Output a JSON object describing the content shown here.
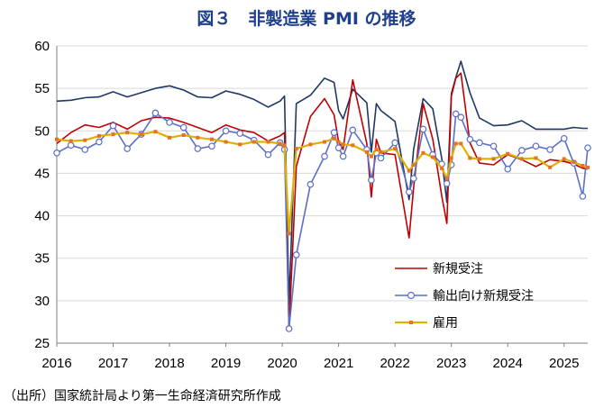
{
  "title": "図３　非製造業 PMI の推移",
  "source": "（出所）国家統計局より第一生命経済研究所作成",
  "chart_data": {
    "type": "line",
    "title": "図３　非製造業 PMI の推移",
    "ylim": [
      25,
      60
    ],
    "yticks": [
      25,
      30,
      35,
      40,
      45,
      50,
      55,
      60
    ],
    "xlim": [
      2016.0,
      2025.42
    ],
    "xticks": [
      "2016",
      "2017",
      "2018",
      "2019",
      "2020",
      "2021",
      "2022",
      "2023",
      "2024",
      "2025"
    ],
    "grid": "horizontal",
    "legend_position": "lower-right",
    "series": [
      {
        "name": "",
        "color": "#1f3864",
        "marker": "none",
        "x": [
          2016.0,
          2016.25,
          2016.5,
          2016.75,
          2017.0,
          2017.25,
          2017.5,
          2017.75,
          2018.0,
          2018.25,
          2018.5,
          2018.75,
          2019.0,
          2019.25,
          2019.5,
          2019.75,
          2019.96,
          2020.04,
          2020.12,
          2020.25,
          2020.5,
          2020.75,
          2020.92,
          2021.0,
          2021.08,
          2021.25,
          2021.5,
          2021.58,
          2021.67,
          2021.75,
          2022.0,
          2022.25,
          2022.33,
          2022.5,
          2022.67,
          2022.83,
          2022.92,
          2023.0,
          2023.08,
          2023.17,
          2023.33,
          2023.5,
          2023.75,
          2024.0,
          2024.25,
          2024.5,
          2024.75,
          2025.0,
          2025.17,
          2025.33,
          2025.42
        ],
        "values": [
          53.5,
          53.6,
          53.9,
          54.0,
          54.6,
          54.0,
          54.5,
          55.0,
          55.3,
          54.8,
          54.0,
          53.9,
          54.7,
          54.3,
          53.7,
          52.8,
          53.5,
          54.1,
          29.6,
          53.2,
          54.2,
          56.2,
          55.7,
          52.4,
          51.4,
          54.9,
          53.3,
          47.5,
          53.2,
          52.4,
          51.1,
          41.9,
          47.8,
          53.8,
          52.6,
          46.7,
          41.6,
          54.4,
          56.3,
          58.2,
          54.5,
          51.5,
          50.6,
          50.7,
          51.2,
          50.2,
          50.2,
          50.2,
          50.4,
          50.3,
          50.3
        ]
      },
      {
        "name": "新規受注",
        "color": "#c00000",
        "marker": "none",
        "x": [
          2016.0,
          2016.25,
          2016.5,
          2016.75,
          2017.0,
          2017.25,
          2017.5,
          2017.75,
          2018.0,
          2018.25,
          2018.5,
          2018.75,
          2019.0,
          2019.25,
          2019.5,
          2019.75,
          2019.96,
          2020.04,
          2020.12,
          2020.25,
          2020.5,
          2020.75,
          2020.92,
          2021.0,
          2021.08,
          2021.25,
          2021.5,
          2021.58,
          2021.67,
          2021.75,
          2022.0,
          2022.25,
          2022.33,
          2022.5,
          2022.67,
          2022.83,
          2022.92,
          2023.0,
          2023.08,
          2023.17,
          2023.33,
          2023.5,
          2023.75,
          2024.0,
          2024.25,
          2024.5,
          2024.75,
          2025.0,
          2025.17,
          2025.33,
          2025.42
        ],
        "values": [
          48.5,
          49.8,
          50.7,
          50.4,
          51.0,
          50.2,
          51.2,
          51.6,
          51.5,
          51.0,
          50.4,
          49.8,
          50.7,
          50.1,
          49.8,
          48.8,
          49.4,
          49.8,
          26.5,
          45.8,
          51.7,
          53.8,
          51.9,
          48.7,
          47.8,
          56.0,
          48.5,
          42.2,
          49.0,
          47.4,
          47.2,
          37.4,
          43.3,
          53.2,
          49.0,
          42.3,
          39.1,
          54.1,
          56.2,
          56.8,
          48.6,
          46.2,
          46.0,
          47.2,
          46.6,
          45.8,
          46.6,
          46.4,
          46.1,
          45.6,
          45.5
        ]
      },
      {
        "name": "輸出向け新規受注",
        "color": "#5b6fc7",
        "marker": "circle",
        "x": [
          2016.0,
          2016.25,
          2016.5,
          2016.75,
          2017.0,
          2017.25,
          2017.5,
          2017.75,
          2018.0,
          2018.25,
          2018.5,
          2018.75,
          2019.0,
          2019.25,
          2019.5,
          2019.75,
          2019.96,
          2020.04,
          2020.12,
          2020.25,
          2020.5,
          2020.75,
          2020.92,
          2021.0,
          2021.08,
          2021.25,
          2021.5,
          2021.58,
          2021.67,
          2021.75,
          2022.0,
          2022.25,
          2022.33,
          2022.5,
          2022.67,
          2022.83,
          2022.92,
          2023.0,
          2023.08,
          2023.17,
          2023.33,
          2023.5,
          2023.75,
          2024.0,
          2024.25,
          2024.5,
          2024.75,
          2025.0,
          2025.17,
          2025.33,
          2025.42
        ],
        "values": [
          47.4,
          48.3,
          47.8,
          48.7,
          50.6,
          47.9,
          49.6,
          52.1,
          51.0,
          50.4,
          47.9,
          48.2,
          50.0,
          49.7,
          48.9,
          47.2,
          48.6,
          47.8,
          26.7,
          35.4,
          43.7,
          47.0,
          49.8,
          48.0,
          47.0,
          50.1,
          47.8,
          44.2,
          47.4,
          46.8,
          48.6,
          42.8,
          44.4,
          50.2,
          47.2,
          46.1,
          43.8,
          46.0,
          52.0,
          51.6,
          49.0,
          48.6,
          48.2,
          45.5,
          47.7,
          48.2,
          47.8,
          49.1,
          46.2,
          42.3,
          48.0
        ]
      },
      {
        "name": "雇用",
        "color": "#e0b000",
        "marker": "square",
        "x": [
          2016.0,
          2016.25,
          2016.5,
          2016.75,
          2017.0,
          2017.25,
          2017.5,
          2017.75,
          2018.0,
          2018.25,
          2018.5,
          2018.75,
          2019.0,
          2019.25,
          2019.5,
          2019.75,
          2019.96,
          2020.04,
          2020.12,
          2020.25,
          2020.5,
          2020.75,
          2020.92,
          2021.0,
          2021.08,
          2021.25,
          2021.5,
          2021.58,
          2021.67,
          2021.75,
          2022.0,
          2022.25,
          2022.33,
          2022.5,
          2022.67,
          2022.83,
          2022.92,
          2023.0,
          2023.08,
          2023.17,
          2023.33,
          2023.5,
          2023.75,
          2024.0,
          2024.25,
          2024.5,
          2024.75,
          2025.0,
          2025.17,
          2025.33,
          2025.42
        ],
        "values": [
          49.0,
          48.8,
          48.9,
          49.4,
          49.6,
          49.8,
          49.6,
          49.9,
          49.2,
          49.5,
          49.2,
          49.0,
          48.7,
          48.4,
          48.7,
          48.7,
          48.5,
          48.3,
          37.9,
          47.9,
          48.4,
          48.7,
          49.1,
          48.7,
          48.4,
          48.3,
          47.5,
          47.0,
          47.8,
          47.5,
          47.9,
          45.3,
          46.0,
          47.4,
          46.9,
          45.6,
          44.4,
          46.8,
          48.5,
          48.5,
          46.8,
          46.7,
          46.7,
          47.3,
          46.7,
          46.8,
          45.7,
          46.7,
          46.3,
          45.9,
          45.7
        ]
      }
    ]
  }
}
